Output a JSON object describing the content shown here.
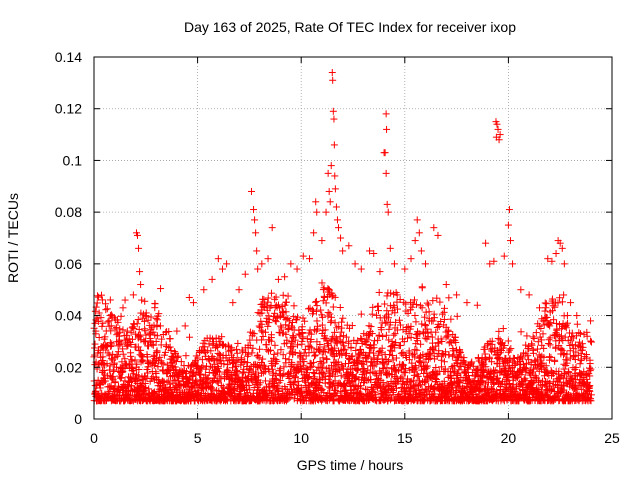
{
  "chart_data": {
    "type": "scatter",
    "title": "Day 163 of 2025, Rate Of TEC Index for receiver ixop",
    "xlabel": "GPS time / hours",
    "ylabel": "ROTI / TECUs",
    "xlim": [
      0,
      25
    ],
    "ylim": [
      0,
      0.14
    ],
    "xticks": [
      0,
      5,
      10,
      15,
      20,
      25
    ],
    "yticks": [
      0,
      0.02,
      0.04,
      0.06,
      0.08,
      0.1,
      0.12,
      0.14
    ],
    "xtick_labels": [
      "0",
      "5",
      "10",
      "15",
      "20",
      "25"
    ],
    "ytick_labels": [
      "0",
      "0.02",
      "0.04",
      "0.06",
      "0.08",
      "0.1",
      "0.12",
      "0.14"
    ],
    "grid": true,
    "marker": "+",
    "marker_color": "#ff0000",
    "series": [
      {
        "points": [
          [
            0.05,
            0.037
          ],
          [
            0.15,
            0.039
          ],
          [
            0.25,
            0.041
          ],
          [
            0.35,
            0.028
          ],
          [
            0.1,
            0.022
          ],
          [
            0.2,
            0.015
          ],
          [
            0.3,
            0.012
          ],
          [
            0.05,
            0.01
          ],
          [
            0.4,
            0.018
          ],
          [
            0.9,
            0.025
          ],
          [
            1.2,
            0.03
          ],
          [
            1.4,
            0.043
          ],
          [
            1.5,
            0.046
          ],
          [
            1.7,
            0.031
          ],
          [
            1.9,
            0.048
          ],
          [
            2.05,
            0.072
          ],
          [
            2.1,
            0.071
          ],
          [
            2.15,
            0.066
          ],
          [
            2.2,
            0.057
          ],
          [
            2.25,
            0.052
          ],
          [
            2.3,
            0.046
          ],
          [
            2.5,
            0.04
          ],
          [
            3.0,
            0.03
          ],
          [
            3.5,
            0.028
          ],
          [
            4.0,
            0.034
          ],
          [
            4.4,
            0.036
          ],
          [
            4.6,
            0.047
          ],
          [
            4.8,
            0.045
          ],
          [
            5.3,
            0.05
          ],
          [
            5.7,
            0.054
          ],
          [
            6.0,
            0.062
          ],
          [
            6.2,
            0.058
          ],
          [
            6.4,
            0.06
          ],
          [
            6.7,
            0.045
          ],
          [
            7.0,
            0.05
          ],
          [
            7.3,
            0.056
          ],
          [
            7.6,
            0.088
          ],
          [
            7.7,
            0.081
          ],
          [
            7.75,
            0.077
          ],
          [
            7.8,
            0.072
          ],
          [
            7.85,
            0.065
          ],
          [
            7.9,
            0.058
          ],
          [
            8.1,
            0.06
          ],
          [
            8.4,
            0.062
          ],
          [
            8.6,
            0.074
          ],
          [
            8.9,
            0.054
          ],
          [
            9.2,
            0.055
          ],
          [
            9.5,
            0.06
          ],
          [
            9.8,
            0.058
          ],
          [
            10.1,
            0.063
          ],
          [
            10.4,
            0.062
          ],
          [
            10.6,
            0.072
          ],
          [
            10.7,
            0.084
          ],
          [
            10.75,
            0.08
          ],
          [
            11.0,
            0.069
          ],
          [
            11.2,
            0.08
          ],
          [
            11.3,
            0.095
          ],
          [
            11.35,
            0.088
          ],
          [
            11.4,
            0.084
          ],
          [
            11.5,
            0.134
          ],
          [
            11.52,
            0.131
          ],
          [
            11.55,
            0.119
          ],
          [
            11.58,
            0.116
          ],
          [
            11.6,
            0.106
          ],
          [
            11.45,
            0.098
          ],
          [
            11.62,
            0.094
          ],
          [
            11.65,
            0.089
          ],
          [
            11.7,
            0.082
          ],
          [
            11.75,
            0.077
          ],
          [
            11.8,
            0.074
          ],
          [
            11.9,
            0.07
          ],
          [
            12.0,
            0.065
          ],
          [
            12.3,
            0.067
          ],
          [
            12.6,
            0.06
          ],
          [
            12.9,
            0.058
          ],
          [
            13.3,
            0.065
          ],
          [
            13.5,
            0.064
          ],
          [
            13.8,
            0.057
          ],
          [
            14.0,
            0.103
          ],
          [
            14.05,
            0.103
          ],
          [
            14.1,
            0.095
          ],
          [
            14.15,
            0.083
          ],
          [
            14.1,
            0.118
          ],
          [
            14.12,
            0.112
          ],
          [
            14.2,
            0.08
          ],
          [
            14.3,
            0.066
          ],
          [
            14.5,
            0.06
          ],
          [
            15.0,
            0.058
          ],
          [
            15.3,
            0.062
          ],
          [
            15.5,
            0.069
          ],
          [
            15.6,
            0.077
          ],
          [
            15.7,
            0.072
          ],
          [
            15.8,
            0.065
          ],
          [
            16.0,
            0.06
          ],
          [
            16.4,
            0.074
          ],
          [
            16.6,
            0.071
          ],
          [
            17.0,
            0.052
          ],
          [
            17.5,
            0.048
          ],
          [
            18.0,
            0.045
          ],
          [
            18.5,
            0.044
          ],
          [
            18.9,
            0.068
          ],
          [
            19.1,
            0.06
          ],
          [
            19.3,
            0.061
          ],
          [
            19.4,
            0.115
          ],
          [
            19.45,
            0.114
          ],
          [
            19.5,
            0.112
          ],
          [
            19.55,
            0.108
          ],
          [
            19.6,
            0.11
          ],
          [
            19.42,
            0.109
          ],
          [
            19.8,
            0.063
          ],
          [
            20.0,
            0.075
          ],
          [
            20.05,
            0.081
          ],
          [
            20.1,
            0.069
          ],
          [
            20.2,
            0.06
          ],
          [
            20.6,
            0.05
          ],
          [
            21.0,
            0.048
          ],
          [
            21.5,
            0.043
          ],
          [
            21.9,
            0.062
          ],
          [
            22.1,
            0.061
          ],
          [
            22.3,
            0.064
          ],
          [
            22.4,
            0.069
          ],
          [
            22.5,
            0.068
          ],
          [
            22.6,
            0.066
          ],
          [
            22.7,
            0.06
          ],
          [
            23.0,
            0.045
          ],
          [
            23.3,
            0.04
          ],
          [
            23.8,
            0.032
          ]
        ]
      }
    ]
  }
}
